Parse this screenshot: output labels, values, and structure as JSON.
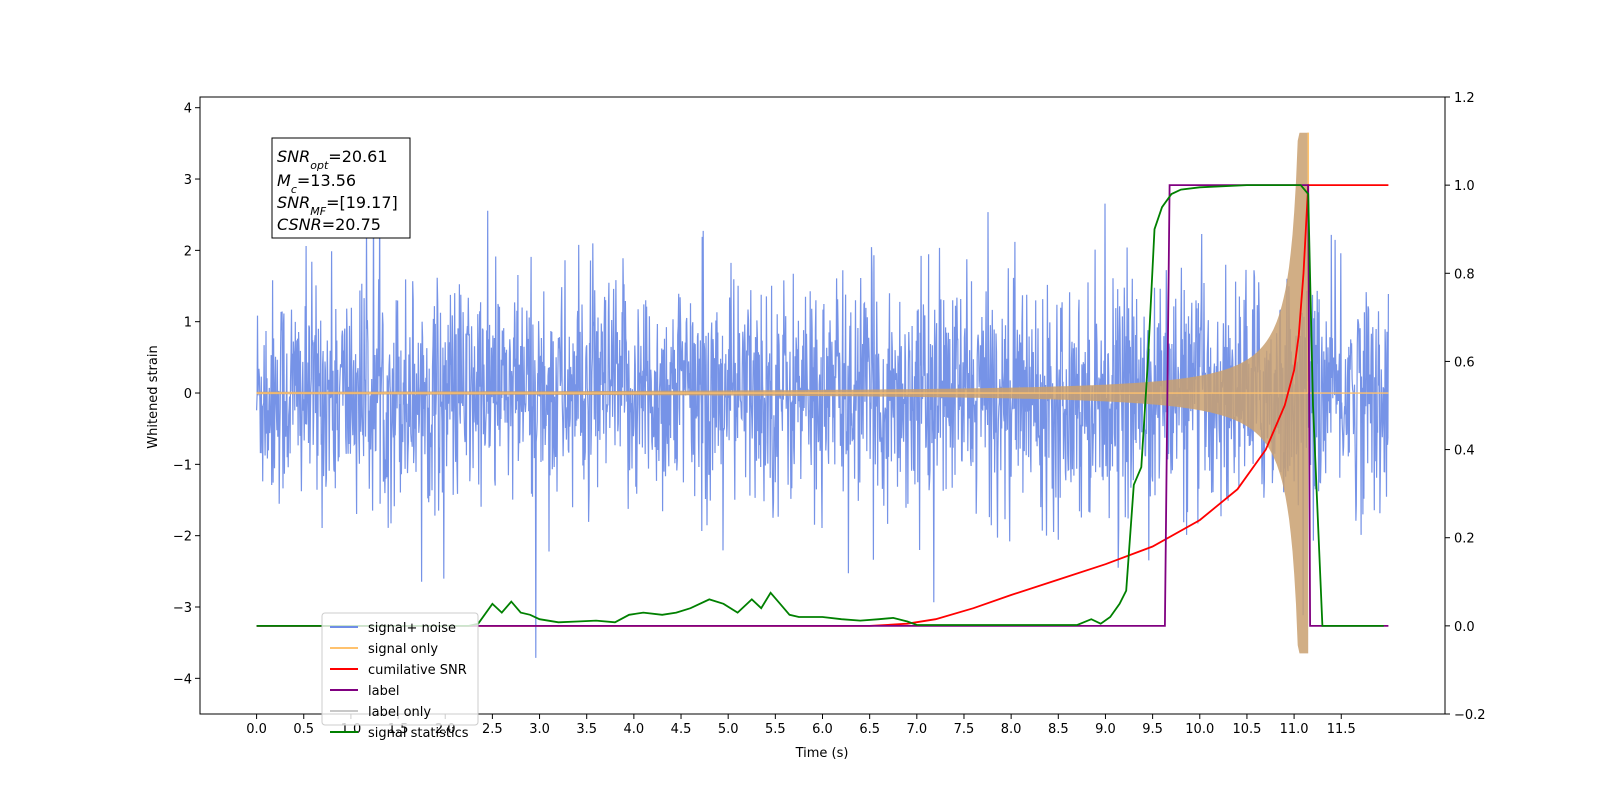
{
  "chart_data": {
    "type": "line",
    "xlabel": "Time (s)",
    "ylabel": "Whitened strain",
    "xlim": [
      -0.6,
      12.6
    ],
    "ylim": [
      -4.5,
      4.15
    ],
    "y2lim": [
      -0.2,
      1.2
    ],
    "x_ticks": [
      "0.0",
      "0.5",
      "1.0",
      "1.5",
      "2.0",
      "2.5",
      "3.0",
      "3.5",
      "4.0",
      "4.5",
      "5.0",
      "5.5",
      "6.0",
      "6.5",
      "7.0",
      "7.5",
      "8.0",
      "8.5",
      "9.0",
      "9.5",
      "10.0",
      "10.5",
      "11.0",
      "11.5"
    ],
    "x_tick_values": [
      0,
      0.5,
      1,
      1.5,
      2,
      2.5,
      3,
      3.5,
      4,
      4.5,
      5,
      5.5,
      6,
      6.5,
      7,
      7.5,
      8,
      8.5,
      9,
      9.5,
      10,
      10.5,
      11,
      11.5
    ],
    "y_ticks": [
      "−4",
      "−3",
      "−2",
      "−1",
      "0",
      "1",
      "2",
      "3",
      "4"
    ],
    "y_tick_values": [
      -4,
      -3,
      -2,
      -1,
      0,
      1,
      2,
      3,
      4
    ],
    "y2_ticks": [
      "−0.2",
      "0.0",
      "0.2",
      "0.4",
      "0.6",
      "0.8",
      "1.0",
      "1.2"
    ],
    "y2_tick_values": [
      -0.2,
      0,
      0.2,
      0.4,
      0.6,
      0.8,
      1.0,
      1.2
    ],
    "grid": false,
    "legend_position": "bottom-left",
    "annotation": {
      "snr_opt": "20.61",
      "mc": "13.56",
      "snr_mf": "[19.17]",
      "csnr": "20.75"
    },
    "series": [
      {
        "name": "signal+ noise",
        "color": "#6f8de6",
        "axis": "left",
        "kind": "noise",
        "x_range": [
          0,
          12.0
        ],
        "typical_amplitude": [
          -1.5,
          1.5
        ],
        "peak_max": 3.75,
        "peak_min": -4.1
      },
      {
        "name": "signal only",
        "color": "#ffc26e",
        "axis": "left",
        "kind": "chirp",
        "x_range": [
          0,
          12.0
        ],
        "merger_time": 11.15,
        "peak_amplitude": 3.65
      },
      {
        "name": "cumilative SNR",
        "color": "#ff0000",
        "axis": "right",
        "x": [
          0,
          6.5,
          6.9,
          7.2,
          7.6,
          8.0,
          8.5,
          9.0,
          9.5,
          10.0,
          10.4,
          10.7,
          10.9,
          11.0,
          11.05,
          11.1,
          11.15,
          12.0
        ],
        "y": [
          0,
          0,
          0.005,
          0.015,
          0.04,
          0.07,
          0.105,
          0.14,
          0.18,
          0.24,
          0.31,
          0.4,
          0.5,
          0.58,
          0.66,
          0.8,
          1.0,
          1.0
        ]
      },
      {
        "name": "label",
        "color": "#800080",
        "axis": "right",
        "x": [
          0,
          9.63,
          9.68,
          11.15,
          11.17,
          12.0
        ],
        "y": [
          0,
          0,
          1.0,
          1.0,
          0,
          0
        ]
      },
      {
        "name": "label only",
        "color": "#c8c8c8",
        "axis": "right",
        "legend_only": true
      },
      {
        "name": "signal statistics",
        "color": "#008000",
        "axis": "right",
        "x": [
          0,
          2.25,
          2.35,
          2.5,
          2.6,
          2.7,
          2.8,
          2.9,
          3.0,
          3.2,
          3.4,
          3.6,
          3.8,
          3.95,
          4.1,
          4.3,
          4.45,
          4.6,
          4.8,
          4.95,
          5.1,
          5.25,
          5.35,
          5.45,
          5.55,
          5.65,
          5.75,
          5.85,
          6.0,
          6.2,
          6.4,
          6.6,
          6.75,
          6.9,
          7.0,
          8.7,
          8.85,
          8.95,
          9.05,
          9.15,
          9.22,
          9.3,
          9.38,
          9.45,
          9.52,
          9.6,
          9.7,
          9.8,
          10.0,
          10.5,
          11.0,
          11.07,
          11.15,
          11.2,
          11.3,
          11.95
        ],
        "y": [
          0,
          0,
          0.005,
          0.05,
          0.03,
          0.055,
          0.03,
          0.025,
          0.015,
          0.008,
          0.01,
          0.012,
          0.008,
          0.025,
          0.03,
          0.025,
          0.03,
          0.04,
          0.06,
          0.05,
          0.03,
          0.06,
          0.04,
          0.075,
          0.05,
          0.025,
          0.02,
          0.02,
          0.02,
          0.015,
          0.012,
          0.015,
          0.018,
          0.01,
          0.002,
          0.002,
          0.015,
          0.005,
          0.02,
          0.05,
          0.08,
          0.32,
          0.36,
          0.6,
          0.9,
          0.95,
          0.98,
          0.99,
          0.995,
          1.0,
          1.0,
          1.0,
          0.98,
          0.5,
          0.0,
          0.0
        ]
      }
    ]
  }
}
